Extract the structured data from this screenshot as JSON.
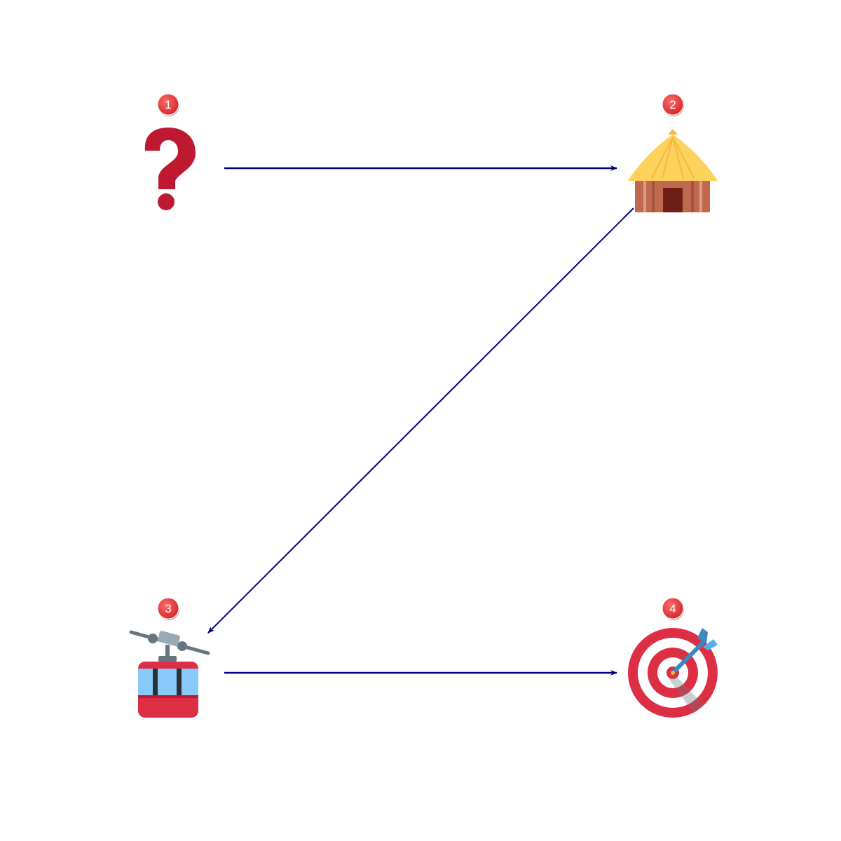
{
  "diagram": {
    "nodes": [
      {
        "id": "1",
        "label": "1",
        "icon": "question-mark-icon"
      },
      {
        "id": "2",
        "label": "2",
        "icon": "hut-icon"
      },
      {
        "id": "3",
        "label": "3",
        "icon": "aerial-tramway-icon"
      },
      {
        "id": "4",
        "label": "4",
        "icon": "bullseye-target-icon"
      }
    ],
    "edges": [
      {
        "from": "1",
        "to": "2"
      },
      {
        "from": "2",
        "to": "3"
      },
      {
        "from": "3",
        "to": "4"
      }
    ],
    "colors": {
      "arrow": "#00007f",
      "badge": "#e53935",
      "question": "#be1931",
      "hut_roof": "#fcd25a",
      "hut_wall": "#c1694f",
      "hut_door": "#6d1f15",
      "tram_body": "#dd2e44",
      "tram_window": "#88c9f9",
      "target_red": "#dd2e44",
      "dart_blue": "#3b88c3"
    }
  }
}
